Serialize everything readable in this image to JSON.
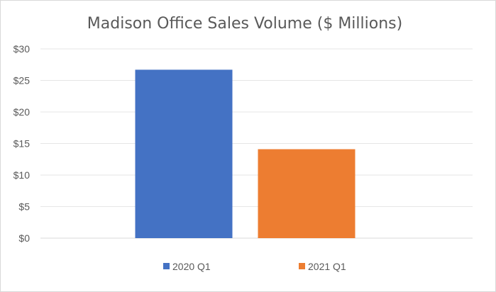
{
  "chart_data": {
    "type": "bar",
    "title": "Madison Office Sales Volume ($ Millions)",
    "xlabel": "",
    "ylabel": "",
    "ylim": [
      0,
      30
    ],
    "yticks": [
      0,
      5,
      10,
      15,
      20,
      25,
      30
    ],
    "ytick_labels": [
      "$0",
      "$5",
      "$10",
      "$15",
      "$20",
      "$25",
      "$30"
    ],
    "grid": true,
    "legend_position": "bottom",
    "series": [
      {
        "name": "2020 Q1",
        "value": 26.7,
        "color": "#4472c4"
      },
      {
        "name": "2021 Q1",
        "value": 14.1,
        "color": "#ed7d31"
      }
    ]
  }
}
